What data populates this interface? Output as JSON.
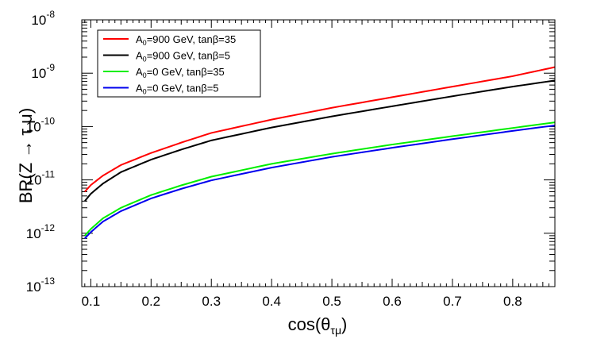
{
  "chart_data": {
    "type": "line",
    "title": "",
    "xlabel": "cos(θ",
    "xlabel_sub": "τμ",
    "xlabel_close": ")",
    "ylabel": "BR(Z → τ μ)",
    "xlim": [
      0.085,
      0.87
    ],
    "ylim": [
      1e-13,
      1e-08
    ],
    "yscale": "log",
    "legend_position": "top-left",
    "xticks": [
      0.1,
      0.2,
      0.3,
      0.4,
      0.5,
      0.6,
      0.7,
      0.8
    ],
    "xtick_labels": [
      "0.1",
      "0.2",
      "0.3",
      "0.4",
      "0.5",
      "0.6",
      "0.7",
      "0.8"
    ],
    "yticks": [
      {
        "value": 1e-13,
        "base": "10",
        "exp": "-13"
      },
      {
        "value": 1e-12,
        "base": "10",
        "exp": "-12"
      },
      {
        "value": 1e-11,
        "base": "10",
        "exp": "-11"
      },
      {
        "value": 1e-10,
        "base": "10",
        "exp": "-10"
      },
      {
        "value": 1e-09,
        "base": "10",
        "exp": "-9"
      },
      {
        "value": 1e-08,
        "base": "10",
        "exp": "-8"
      }
    ],
    "x": [
      0.09,
      0.1,
      0.12,
      0.15,
      0.2,
      0.25,
      0.3,
      0.4,
      0.5,
      0.6,
      0.7,
      0.8,
      0.87
    ],
    "series": [
      {
        "name": "A0=900 GeV, tanβ=35",
        "label_parts": {
          "a": "A",
          "sub": "0",
          "rest": "=900 GeV, tanβ=35"
        },
        "color": "#ff0000",
        "values": [
          6e-12,
          8e-12,
          1.2e-11,
          1.9e-11,
          3.2e-11,
          5e-11,
          7.6e-11,
          1.35e-10,
          2.25e-10,
          3.55e-10,
          5.6e-10,
          8.8e-10,
          1.3e-09
        ]
      },
      {
        "name": "A0=900 GeV, tanβ=5",
        "label_parts": {
          "a": "A",
          "sub": "0",
          "rest": "=900 GeV, tanβ=5"
        },
        "color": "#000000",
        "values": [
          4e-12,
          5.5e-12,
          8.5e-12,
          1.4e-11,
          2.4e-11,
          3.7e-11,
          5.5e-11,
          9.6e-11,
          1.55e-10,
          2.4e-10,
          3.7e-10,
          5.6e-10,
          7.3e-10
        ]
      },
      {
        "name": "A0=0 GeV, tanβ=35",
        "label_parts": {
          "a": "A",
          "sub": "0",
          "rest": "=0 GeV, tanβ=35"
        },
        "color": "#00ee00",
        "values": [
          9e-13,
          1.2e-12,
          1.9e-12,
          3e-12,
          5.2e-12,
          7.9e-12,
          1.15e-11,
          2e-11,
          3.1e-11,
          4.6e-11,
          6.6e-11,
          9.4e-11,
          1.2e-10
        ]
      },
      {
        "name": "A0=0 GeV, tanβ=5",
        "label_parts": {
          "a": "A",
          "sub": "0",
          "rest": "=0 GeV, tanβ=5"
        },
        "color": "#0000ee",
        "values": [
          8e-13,
          1.05e-12,
          1.65e-12,
          2.6e-12,
          4.5e-12,
          6.8e-12,
          9.8e-12,
          1.7e-11,
          2.7e-11,
          4e-11,
          5.8e-11,
          8.3e-11,
          1.05e-10
        ]
      }
    ]
  }
}
